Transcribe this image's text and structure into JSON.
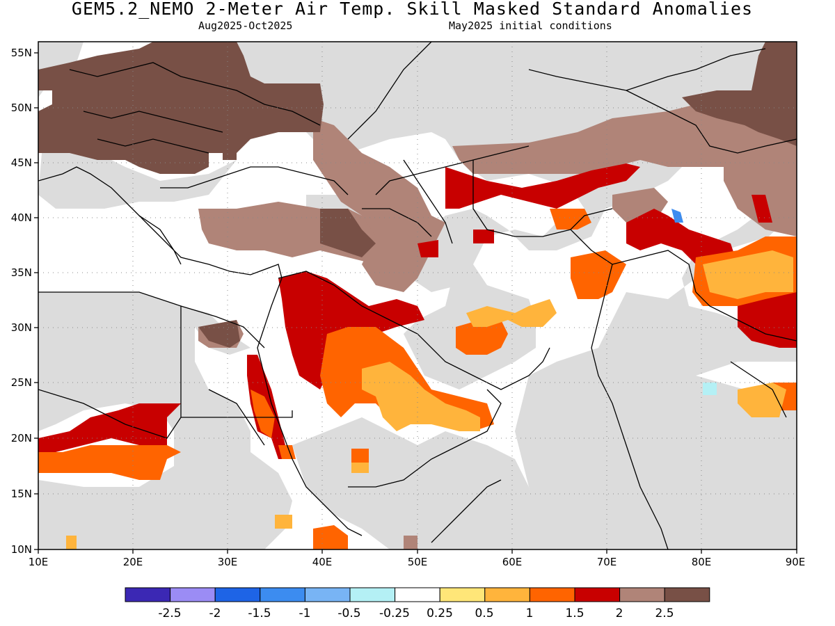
{
  "title": "GEM5.2_NEMO 2-Meter Air Temp. Skill Masked Standard Anomalies",
  "subtitle_period": "Aug2025-Oct2025",
  "subtitle_init": "May2025 initial conditions",
  "lat_labels": [
    "55N",
    "50N",
    "45N",
    "40N",
    "35N",
    "30N",
    "25N",
    "20N",
    "15N",
    "10N"
  ],
  "lon_labels": [
    "10E",
    "20E",
    "30E",
    "40E",
    "50E",
    "60E",
    "70E",
    "80E",
    "90E"
  ],
  "colorbar": {
    "colors": [
      "#3b28b4",
      "#9b8cf5",
      "#1e64e6",
      "#3c8cf0",
      "#78b4f5",
      "#b4f0f5",
      "#ffffff",
      "#ffe678",
      "#ffb43c",
      "#ff6400",
      "#c80000",
      "#b08478",
      "#785046"
    ],
    "labels": [
      "-2.5",
      "-2",
      "-1.5",
      "-1",
      "-0.5",
      "-0.25",
      "0.25",
      "0.5",
      "1",
      "1.5",
      "2",
      "2.5"
    ]
  },
  "legend_classes": {
    "not_skillful": "#dcdcdc",
    "gt_2_5": "#785046",
    "2_to_2_5": "#b08478",
    "1_5_to_2": "#c80000",
    "1_to_1_5": "#ff6400",
    "0_5_to_1": "#ffb43c"
  }
}
